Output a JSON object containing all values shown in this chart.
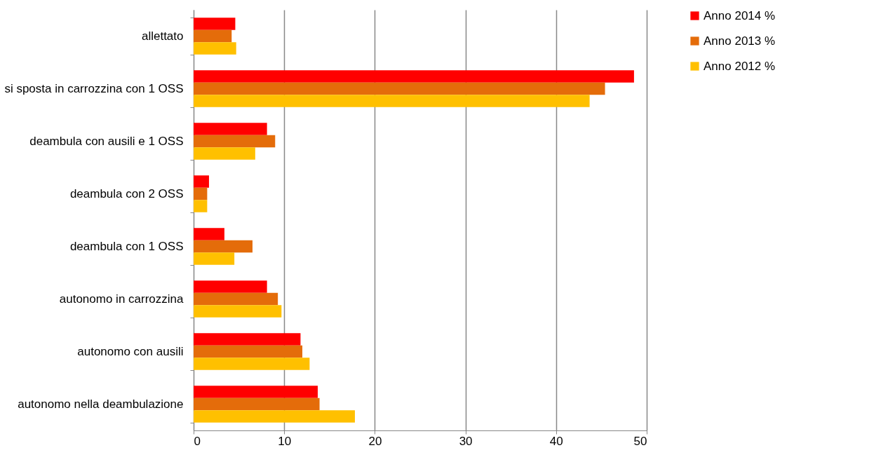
{
  "chart_data": {
    "type": "bar",
    "orientation": "horizontal",
    "categories": [
      "allettato",
      "si sposta in carrozzina con 1 OSS",
      "deambula con ausili e 1 OSS",
      "deambula con 2 OSS",
      "deambula con 1 OSS",
      "autonomo in carrozzina",
      "autonomo  con ausili",
      "autonomo nella deambulazione"
    ],
    "series": [
      {
        "name": "Anno 2014 %",
        "color": "#ff0000",
        "values": [
          4.6,
          48.6,
          8.1,
          1.7,
          3.4,
          8.1,
          11.8,
          13.7
        ]
      },
      {
        "name": "Anno 2013 %",
        "color": "#e46c0a",
        "values": [
          4.2,
          45.4,
          9.0,
          1.5,
          6.5,
          9.3,
          12.0,
          13.9
        ]
      },
      {
        "name": "Anno 2012 %",
        "color": "#ffc000",
        "values": [
          4.7,
          43.7,
          6.8,
          1.5,
          4.5,
          9.7,
          12.8,
          17.8
        ]
      }
    ],
    "xlim": [
      0,
      50
    ],
    "xticks": [
      0,
      10,
      20,
      30,
      40,
      50
    ],
    "grid": "x",
    "legend": "right"
  }
}
